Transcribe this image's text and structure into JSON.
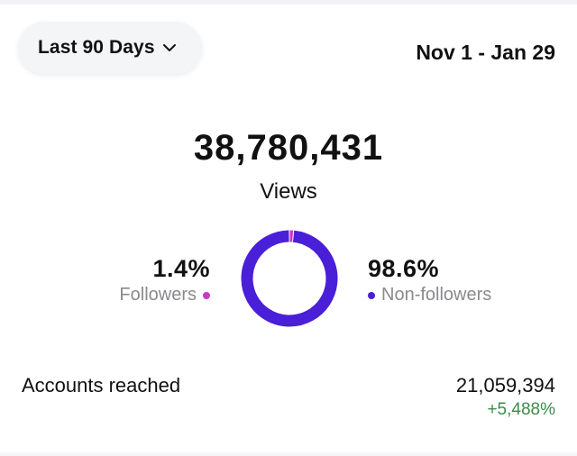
{
  "filter": {
    "range_label": "Last 90 Days",
    "date_range": "Nov 1 - Jan 29"
  },
  "summary": {
    "views_value": "38,780,431",
    "views_label": "Views"
  },
  "breakdown": {
    "followers": {
      "percent_text": "1.4%",
      "label": "Followers",
      "share": 0.014,
      "color": "#c93ac6"
    },
    "non_followers": {
      "percent_text": "98.6%",
      "label": "Non-followers",
      "share": 0.986,
      "color": "#4a1fd8"
    }
  },
  "accounts_reached": {
    "label": "Accounts reached",
    "value": "21,059,394",
    "change": "+5,488%"
  },
  "icons": {
    "range_chevron": "chevron-down-icon"
  }
}
